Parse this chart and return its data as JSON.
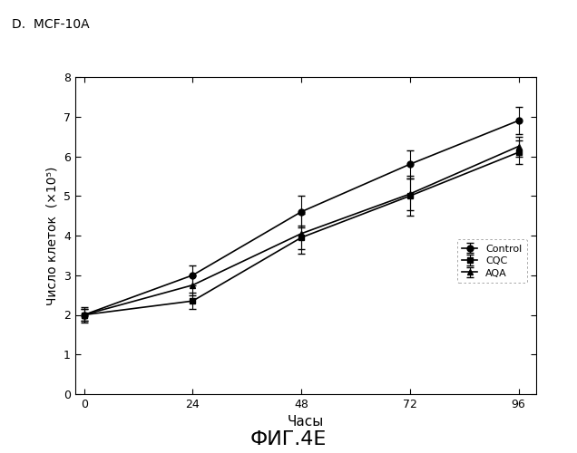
{
  "title": "D.  MCF-10A",
  "xlabel": "Часы",
  "ylabel": "Число клеток  (×10⁵)",
  "caption": "ФИГ.4E",
  "x": [
    0,
    24,
    48,
    72,
    96
  ],
  "control_y": [
    2.0,
    3.0,
    4.6,
    5.8,
    6.9
  ],
  "control_err": [
    0.15,
    0.25,
    0.4,
    0.35,
    0.35
  ],
  "cqc_y": [
    2.0,
    2.35,
    3.95,
    5.0,
    6.1
  ],
  "cqc_err": [
    0.15,
    0.2,
    0.3,
    0.5,
    0.3
  ],
  "aqa_y": [
    2.0,
    2.75,
    4.05,
    5.05,
    6.25
  ],
  "aqa_err": [
    0.2,
    0.25,
    0.5,
    0.4,
    0.25
  ],
  "ylim": [
    0,
    8
  ],
  "yticks": [
    0,
    1,
    2,
    3,
    4,
    5,
    6,
    7,
    8
  ],
  "xticks": [
    0,
    24,
    48,
    72,
    96
  ],
  "legend_labels": [
    "Control",
    "CQC",
    "AQA"
  ],
  "background_color": "#ffffff",
  "line_color": "#000000"
}
